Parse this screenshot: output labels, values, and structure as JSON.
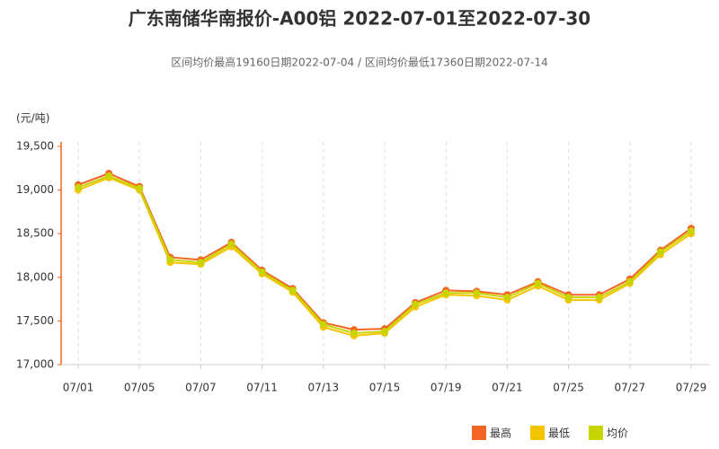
{
  "chart_data": {
    "type": "line",
    "title": "广东南储华南报价-A00铝 2022-07-01至2022-07-30",
    "subtitle": "区间均价最高19160日期2022-07-04 / 区间均价最低17360日期2022-07-14",
    "ylabel": "(元/吨)",
    "categories": [
      "07/01",
      null,
      "07/05",
      null,
      "07/07",
      null,
      "07/11",
      null,
      "07/13",
      null,
      "07/15",
      null,
      "07/19",
      null,
      "07/21",
      null,
      "07/25",
      null,
      "07/27",
      null,
      "07/29"
    ],
    "series": [
      {
        "name": "最高",
        "color": "#f26522",
        "values": [
          19060,
          19190,
          19040,
          18230,
          18200,
          18400,
          18080,
          17870,
          17480,
          17400,
          17410,
          17710,
          17850,
          17840,
          17800,
          17950,
          17800,
          17800,
          17980,
          18310,
          18560
        ]
      },
      {
        "name": "最低",
        "color": "#f5c400",
        "values": [
          19000,
          19140,
          19000,
          18170,
          18150,
          18350,
          18040,
          17830,
          17430,
          17330,
          17360,
          17660,
          17800,
          17790,
          17740,
          17900,
          17740,
          17740,
          17930,
          18260,
          18500
        ]
      },
      {
        "name": "均价",
        "color": "#c8d400",
        "values": [
          19030,
          19160,
          19020,
          18200,
          18170,
          18380,
          18060,
          17850,
          17460,
          17360,
          17380,
          17690,
          17820,
          17820,
          17770,
          17930,
          17770,
          17770,
          17950,
          18290,
          18530
        ]
      }
    ],
    "ylim": [
      17000,
      19500
    ],
    "yticks": [
      {
        "value": 17000,
        "label": "17,000"
      },
      {
        "value": 17500,
        "label": "17,500"
      },
      {
        "value": 18000,
        "label": "18,000"
      },
      {
        "value": 18500,
        "label": "18,500"
      },
      {
        "value": 19000,
        "label": "19,000"
      },
      {
        "value": 19500,
        "label": "19,500"
      }
    ],
    "grid": true
  }
}
